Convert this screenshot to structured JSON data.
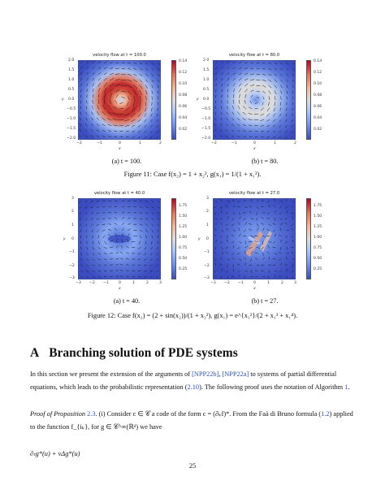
{
  "figure11": {
    "panel_a": {
      "title": "velocity flow at t = 100.0",
      "caption": "(a) t = 100.",
      "xticks": [
        "−2",
        "−1",
        "0",
        "1",
        "2"
      ],
      "yticks": [
        "2.0",
        "1.5",
        "1.0",
        "0.5",
        "0.0",
        "−0.5",
        "−1.0",
        "−1.5",
        "−2.0"
      ],
      "xlabel": "x",
      "ylabel": "y",
      "colorbar_ticks": [
        "0.14",
        "0.12",
        "0.10",
        "0.08",
        "0.06",
        "0.04",
        "0.02"
      ]
    },
    "panel_b": {
      "title": "velocity flow at t = 80.0",
      "caption": "(b) t = 80.",
      "xticks": [
        "−2",
        "−1",
        "0",
        "1",
        "2"
      ],
      "yticks": [
        "2.0",
        "1.5",
        "1.0",
        "0.5",
        "0.0",
        "−0.5",
        "−1.0",
        "−1.5",
        "−2.0"
      ],
      "xlabel": "x",
      "ylabel": "y",
      "colorbar_ticks": [
        "0.14",
        "0.12",
        "0.10",
        "0.08",
        "0.06",
        "0.04",
        "0.02"
      ]
    },
    "caption": "Figure 11: Case f(x₂) = 1 + x₂², g(x₁) = 1/(1 + x₁²)."
  },
  "figure12": {
    "panel_a": {
      "title": "velocity flow at t = 40.0",
      "caption": "(a) t = 40.",
      "xticks": [
        "−3",
        "−2",
        "−1",
        "0",
        "1",
        "2",
        "3"
      ],
      "yticks": [
        "3",
        "2",
        "1",
        "0",
        "−1",
        "−2",
        "−3"
      ],
      "xlabel": "x",
      "ylabel": "y",
      "colorbar_ticks": [
        "1.75",
        "1.50",
        "1.25",
        "1.00",
        "0.75",
        "0.50",
        "0.25"
      ]
    },
    "panel_b": {
      "title": "velocity flow at t = 27.0",
      "caption": "(b) t = 27.",
      "xticks": [
        "−3",
        "−2",
        "−1",
        "0",
        "1",
        "2",
        "3"
      ],
      "yticks": [
        "3",
        "2",
        "1",
        "0",
        "−1",
        "−2",
        "−3"
      ],
      "xlabel": "x",
      "ylabel": "y",
      "colorbar_ticks": [
        "1.75",
        "1.50",
        "1.25",
        "1.00",
        "0.75",
        "0.50",
        "0.25"
      ]
    },
    "caption": "Figure 12: Case f(x₂) = (2 + sin(x₂))/(1 + x₂²), g(x₁) = e^{x₁²}/(2 + x₁³ + x₁⁴)."
  },
  "section": {
    "number": "A",
    "title": "Branching solution of PDE systems"
  },
  "paragraph1": {
    "t1": "In this section we present the extension of the arguments of ",
    "ref1": "[NPP22b]",
    "t2": ", ",
    "ref2": "[NPP22a]",
    "t3": " to systems of partial differential equations, which leads to the probabilistic representation (",
    "ref3": "2.10",
    "t4": "). The following proof uses the notation of Algorithm ",
    "ref4": "1",
    "t5": "."
  },
  "paragraph2": {
    "proof_label": "Proof of Proposition ",
    "ref1": "2.3",
    "t1": ". (i) Consider c ∈ 𝒞 a code of the form c = (∂ₖf)*. From the Faà di Bruno formula (",
    "ref2": "1.2",
    "t2": ") applied to the function f_{iₖ}, for g ∈ 𝒞^∞(ℝᵈ) we have"
  },
  "equation": "∂ₜg*(u) + νΔg*(u)",
  "page_number": "25",
  "colors": {
    "link": "#2a52be",
    "cmap_low": "#3b4cc0",
    "cmap_high": "#b40426"
  }
}
